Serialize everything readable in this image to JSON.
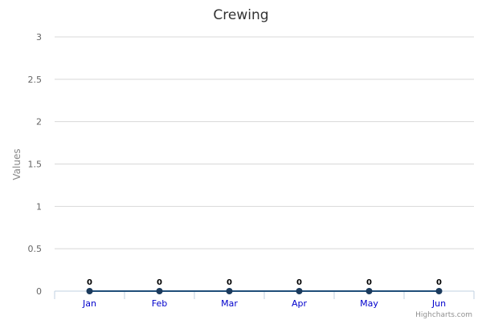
{
  "chart_data": {
    "type": "line",
    "title": "Crewing",
    "ylabel": "Values",
    "xlabel": "",
    "categories": [
      "Jan",
      "Feb",
      "Mar",
      "Apr",
      "May",
      "Jun"
    ],
    "series": [
      {
        "values": [
          0,
          0,
          0,
          0,
          0,
          0
        ]
      }
    ],
    "ylim": [
      0,
      3
    ],
    "yticks": [
      "0",
      "0.5",
      "1",
      "1.5",
      "2",
      "2.5",
      "3"
    ],
    "grid": true,
    "legend": "none",
    "data_labels": [
      "0",
      "0",
      "0",
      "0",
      "0",
      "0"
    ],
    "credits": "Highcharts.com",
    "colors": {
      "line": "#1f4e79",
      "marker": "#1b3a5c",
      "grid": "#d8d8d8",
      "axis": "#c0d0e0",
      "title": "#333333",
      "tick": "#666666",
      "category": "#0000cc",
      "ylabel": "#888888",
      "credits": "#909090"
    }
  }
}
